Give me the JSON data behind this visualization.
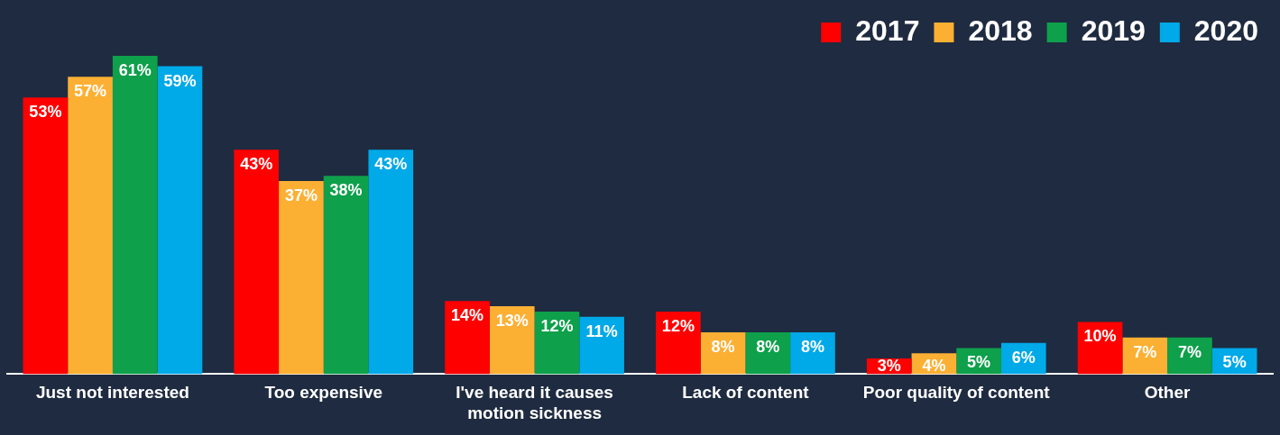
{
  "chart_data": {
    "type": "bar",
    "categories": [
      "Just not interested",
      "Too expensive",
      "I've heard it causes motion sickness",
      "Lack of content",
      "Poor quality of content",
      "Other"
    ],
    "series": [
      {
        "name": "2017",
        "color": "#ff0000",
        "values": [
          53,
          43,
          14,
          12,
          3,
          10
        ],
        "value_labels": [
          "53%",
          "43%",
          "14%",
          "12%",
          "3%",
          "10%"
        ]
      },
      {
        "name": "2018",
        "color": "#fbb034",
        "values": [
          57,
          37,
          13,
          8,
          4,
          7
        ],
        "value_labels": [
          "57%",
          "37%",
          "13%",
          "8%",
          "4%",
          "7%"
        ]
      },
      {
        "name": "2019",
        "color": "#0ea04b",
        "values": [
          61,
          38,
          12,
          8,
          5,
          7
        ],
        "value_labels": [
          "61%",
          "38%",
          "12%",
          "8%",
          "5%",
          "7%"
        ]
      },
      {
        "name": "2020",
        "color": "#00a9e8",
        "values": [
          59,
          43,
          11,
          8,
          6,
          5
        ],
        "value_labels": [
          "59%",
          "43%",
          "11%",
          "8%",
          "6%",
          "5%"
        ]
      }
    ],
    "legend": "top right",
    "grid": false,
    "tick_labels": "x"
  }
}
